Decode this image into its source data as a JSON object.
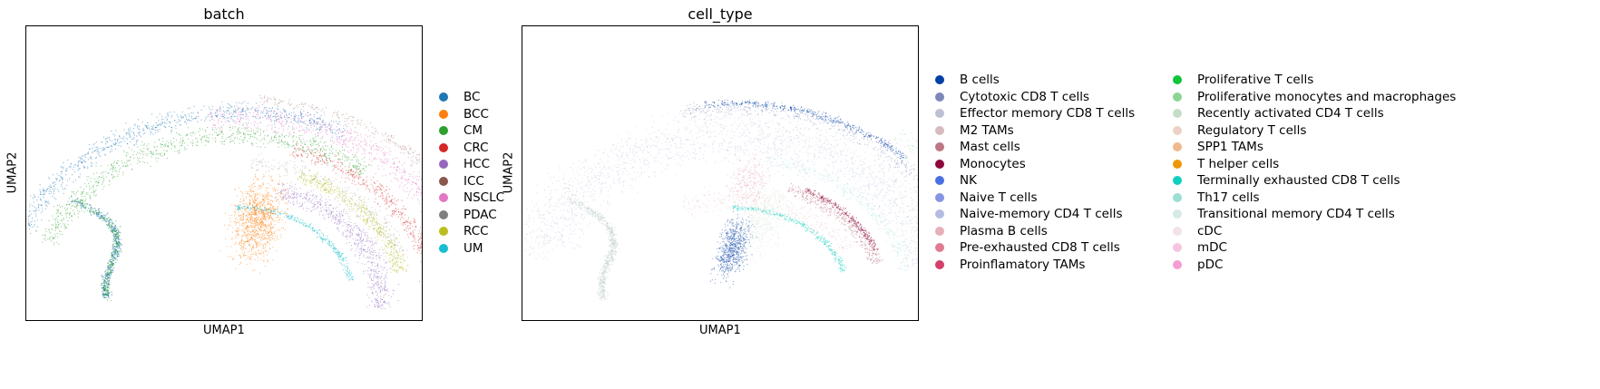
{
  "chart_data": [
    {
      "type": "scatter",
      "title": "batch",
      "xlabel": "UMAP1",
      "ylabel": "UMAP2",
      "grid": false,
      "legend_placement": "right",
      "legend": [
        {
          "name": "BC",
          "color": "#1f77b4"
        },
        {
          "name": "BCC",
          "color": "#ff7f0e"
        },
        {
          "name": "CM",
          "color": "#2ca02c"
        },
        {
          "name": "CRC",
          "color": "#d62728"
        },
        {
          "name": "HCC",
          "color": "#9467bd"
        },
        {
          "name": "ICC",
          "color": "#8c564b"
        },
        {
          "name": "NSCLC",
          "color": "#e377c2"
        },
        {
          "name": "PDAC",
          "color": "#7f7f7f"
        },
        {
          "name": "RCC",
          "color": "#bcbd22"
        },
        {
          "name": "UM",
          "color": "#17becf"
        }
      ]
    },
    {
      "type": "scatter",
      "title": "cell_type",
      "xlabel": "UMAP1",
      "ylabel": "UMAP2",
      "grid": false,
      "legend_placement": "right",
      "legend": [
        {
          "name": "B cells",
          "color": "#023fa5"
        },
        {
          "name": "Cytotoxic CD8 T cells",
          "color": "#7d87b9"
        },
        {
          "name": "Effector memory CD8 T cells",
          "color": "#bec1d4"
        },
        {
          "name": "M2 TAMs",
          "color": "#d6bcc0"
        },
        {
          "name": "Mast cells",
          "color": "#bb7784"
        },
        {
          "name": "Monocytes",
          "color": "#8e063b"
        },
        {
          "name": "NK",
          "color": "#4a6fe3"
        },
        {
          "name": "Naive T cells",
          "color": "#8595e1"
        },
        {
          "name": "Naive-memory CD4 T cells",
          "color": "#b5bbe3"
        },
        {
          "name": "Plasma B cells",
          "color": "#e6afb9"
        },
        {
          "name": "Pre-exhausted CD8 T cells",
          "color": "#e07b91"
        },
        {
          "name": "Proinflamatory TAMs",
          "color": "#d33f6a"
        },
        {
          "name": "Proliferative T cells",
          "color": "#11c638"
        },
        {
          "name": "Proliferative monocytes and macrophages",
          "color": "#8dd593"
        },
        {
          "name": "Recently activated CD4 T cells",
          "color": "#c6dec7"
        },
        {
          "name": "Regulatory T cells",
          "color": "#ead3c6"
        },
        {
          "name": "SPP1 TAMs",
          "color": "#f0b98d"
        },
        {
          "name": "T helper cells",
          "color": "#ef9708"
        },
        {
          "name": "Terminally exhausted CD8 T cells",
          "color": "#0fcfc0"
        },
        {
          "name": "Th17 cells",
          "color": "#9cded6"
        },
        {
          "name": "Transitional memory CD4 T cells",
          "color": "#d5eae7"
        },
        {
          "name": "cDC",
          "color": "#f3e1eb"
        },
        {
          "name": "mDC",
          "color": "#f6c4e1"
        },
        {
          "name": "pDC",
          "color": "#f79cd4"
        }
      ]
    }
  ]
}
